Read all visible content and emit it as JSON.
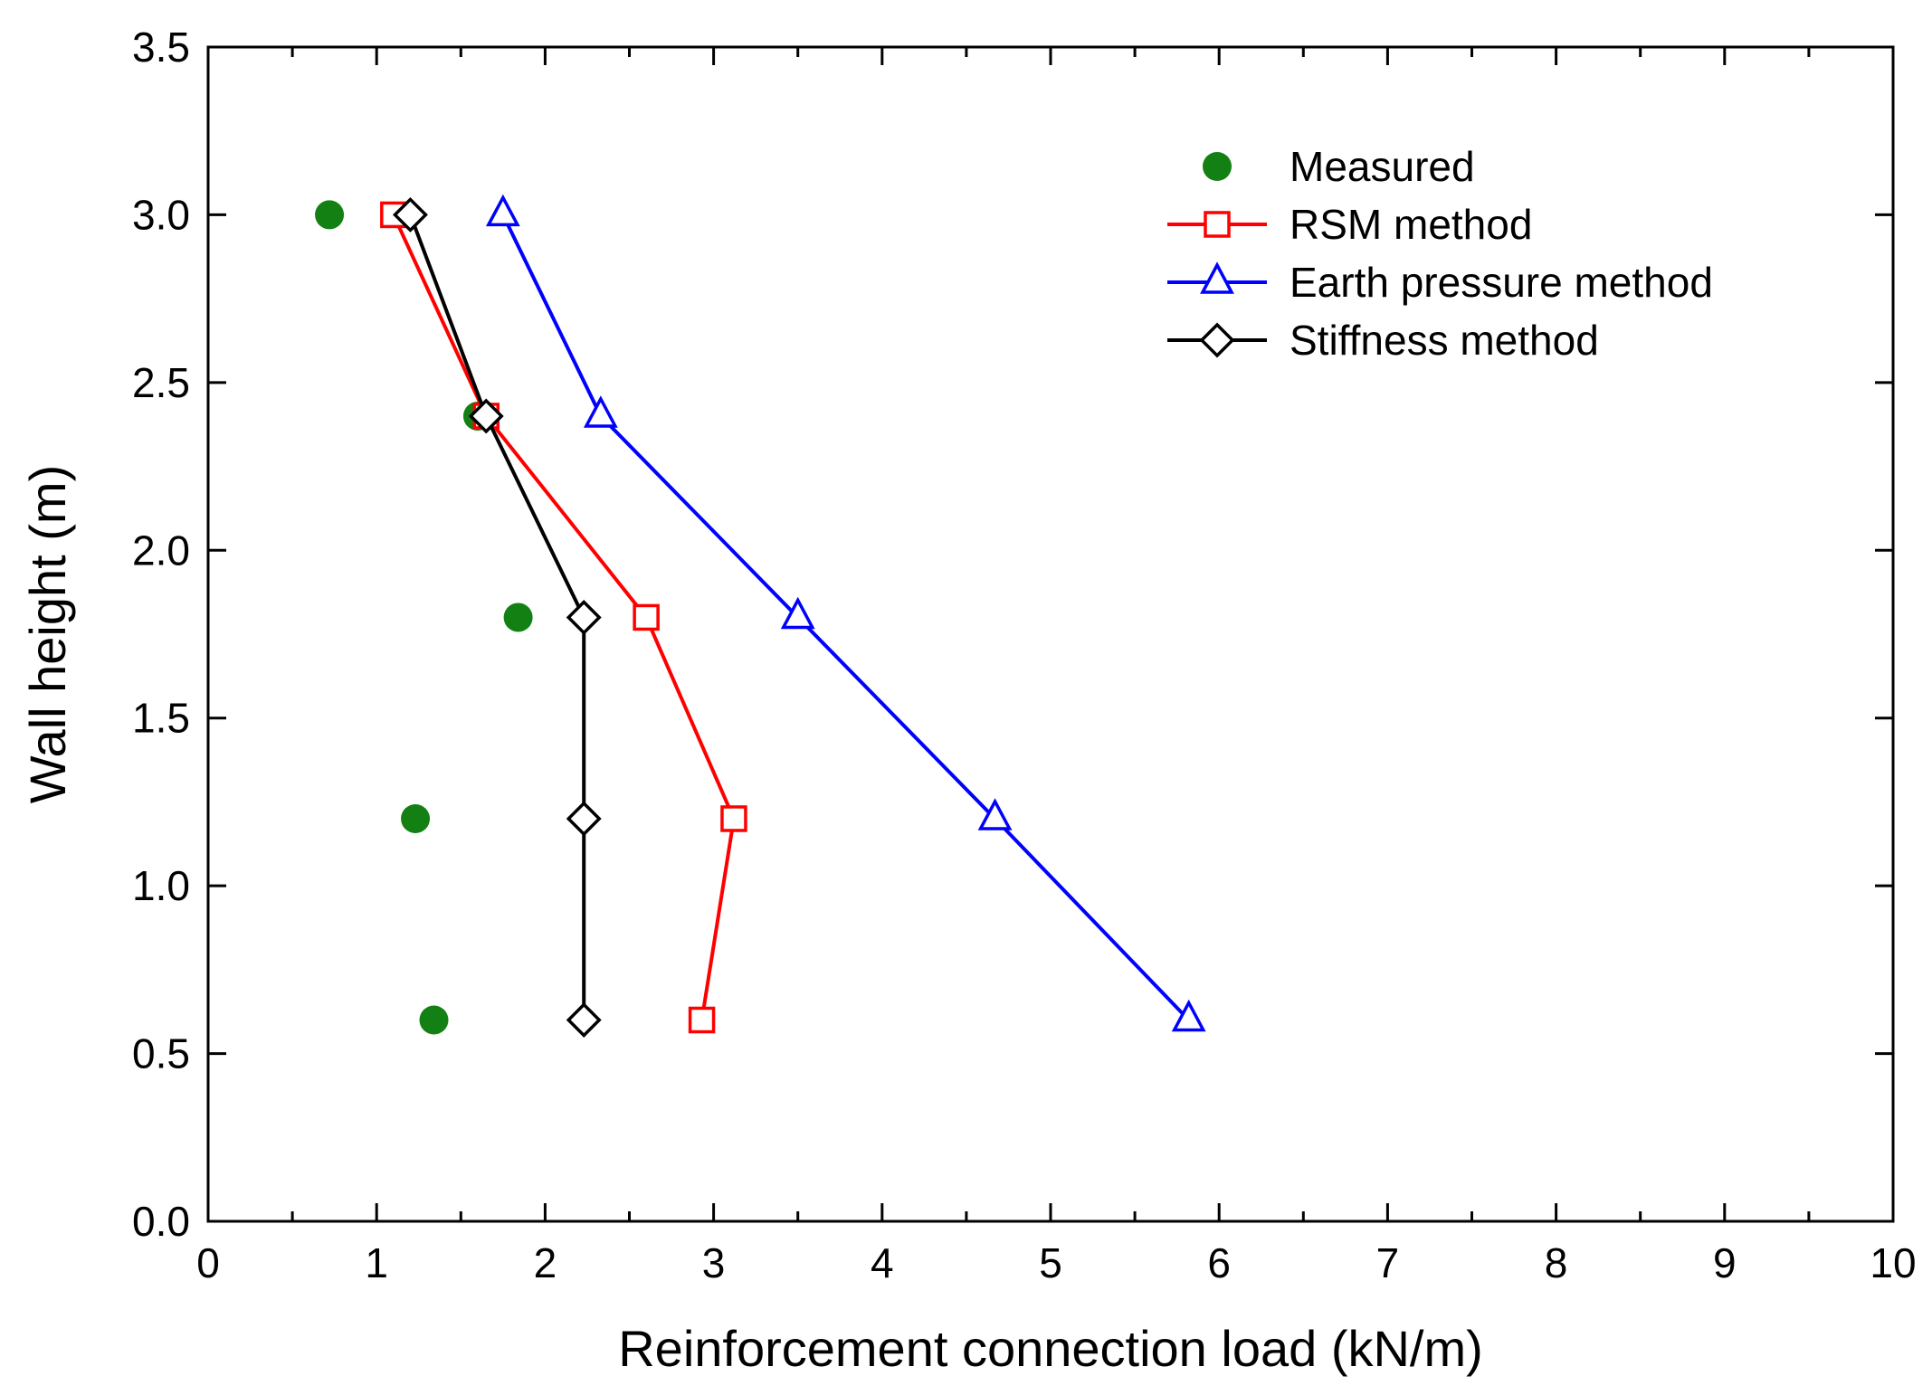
{
  "chart_data": {
    "type": "scatter",
    "xlabel": "Reinforcement connection load (kN/m)",
    "ylabel": "Wall height (m)",
    "xlim": [
      0,
      10
    ],
    "ylim": [
      0,
      3.5
    ],
    "x_ticks": [
      0,
      1,
      2,
      3,
      4,
      5,
      6,
      7,
      8,
      9,
      10
    ],
    "x_tick_labels": [
      "0",
      "1",
      "2",
      "3",
      "4",
      "5",
      "6",
      "7",
      "8",
      "9",
      "10"
    ],
    "y_ticks": [
      0,
      0.5,
      1,
      1.5,
      2,
      2.5,
      3,
      3.5
    ],
    "y_tick_labels": [
      "0.0",
      "0.5",
      "1.0",
      "1.5",
      "2.0",
      "2.5",
      "3.0",
      "3.5"
    ],
    "grid": false,
    "legend_position": "top-right",
    "series": [
      {
        "name": "Measured",
        "marker": "circle-filled",
        "line": false,
        "color": "#138013",
        "points": [
          [
            0.72,
            3.0
          ],
          [
            1.6,
            2.4
          ],
          [
            1.84,
            1.8
          ],
          [
            1.23,
            1.2
          ],
          [
            1.34,
            0.6
          ]
        ]
      },
      {
        "name": "RSM method",
        "marker": "square-open",
        "line": true,
        "color": "#ff0000",
        "points": [
          [
            1.1,
            3.0
          ],
          [
            1.65,
            2.4
          ],
          [
            2.6,
            1.8
          ],
          [
            3.12,
            1.2
          ],
          [
            2.93,
            0.6
          ]
        ]
      },
      {
        "name": "Earth pressure method",
        "marker": "triangle-open",
        "line": true,
        "color": "#0000ff",
        "points": [
          [
            1.75,
            3.0
          ],
          [
            2.33,
            2.4
          ],
          [
            3.5,
            1.8
          ],
          [
            4.67,
            1.2
          ],
          [
            5.82,
            0.6
          ]
        ]
      },
      {
        "name": "Stiffness method",
        "marker": "diamond-open",
        "line": true,
        "color": "#000000",
        "points": [
          [
            1.2,
            3.0
          ],
          [
            1.65,
            2.4
          ],
          [
            2.23,
            1.8
          ],
          [
            2.23,
            1.2
          ],
          [
            2.23,
            0.6
          ]
        ]
      }
    ]
  }
}
